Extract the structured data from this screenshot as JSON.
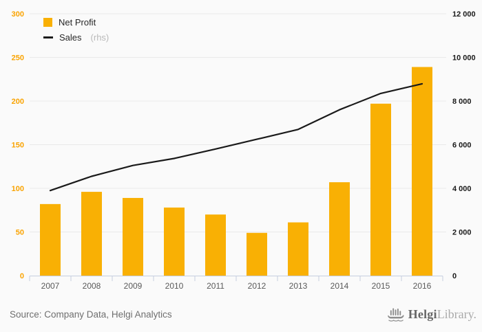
{
  "chart_data": {
    "type": "bar",
    "categories": [
      "2007",
      "2008",
      "2009",
      "2010",
      "2011",
      "2012",
      "2013",
      "2014",
      "2015",
      "2016"
    ],
    "series": [
      {
        "name": "Net Profit",
        "type": "bar",
        "axis": "left",
        "color": "#F9B004",
        "values": [
          82,
          96,
          89,
          78,
          70,
          49,
          61,
          107,
          197,
          239
        ]
      },
      {
        "name": "Sales",
        "type": "line",
        "axis": "right",
        "color": "#1a1a1a",
        "values": [
          3900,
          4550,
          5050,
          5370,
          5800,
          6250,
          6700,
          7600,
          8350,
          8790
        ]
      }
    ],
    "title": "",
    "xlabel": "",
    "ylabel": "",
    "left_axis": {
      "min": 0,
      "max": 300,
      "step": 50,
      "tick_labels": [
        "0",
        "50",
        "100",
        "150",
        "200",
        "250",
        "300"
      ],
      "label_color": "#F9A300"
    },
    "right_axis": {
      "min": 0,
      "max": 12000,
      "step": 2000,
      "tick_labels": [
        "0",
        "2 000",
        "4 000",
        "6 000",
        "8 000",
        "10 000",
        "12 000"
      ],
      "label_color": "#1a1a1a"
    },
    "grid": true,
    "legend_position": "top-left",
    "legend_rhs_note": "(rhs)",
    "colors": {
      "background": "#fafafa",
      "gridline": "#e9e9e9",
      "axis_line": "#c5cedf",
      "year_label": "#595959"
    }
  },
  "footer": {
    "source": "Source: Company Data, Helgi Analytics",
    "logo_primary": "Helgi",
    "logo_secondary": "Library.",
    "logo_icon": "viking-ship-barchart-icon"
  }
}
